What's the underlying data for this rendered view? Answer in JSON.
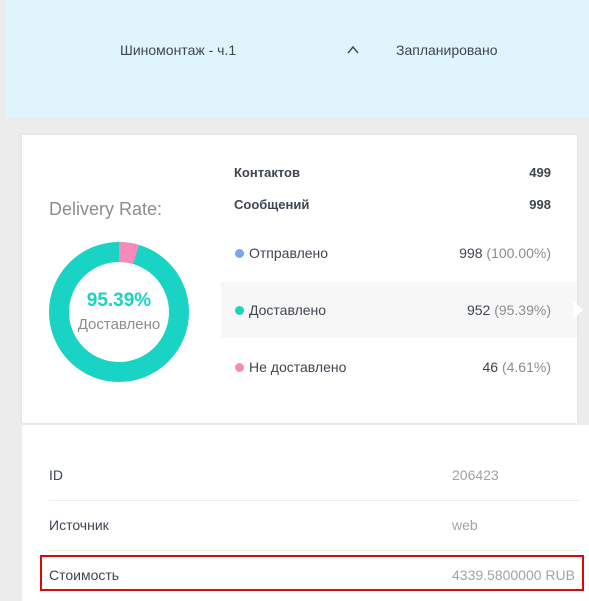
{
  "campaign": {
    "name": "Шиномонтаж - ч.1",
    "status": "Запланировано",
    "chevron_icon": "chevron-up-icon"
  },
  "stats": {
    "title": "Delivery Rate:",
    "rate_percent": "95.39%",
    "rate_label": "Доставлено",
    "rate_value": 95.39,
    "contacts_label": "Контактов",
    "contacts_value": "499",
    "messages_label": "Сообщений",
    "messages_value": "998",
    "rows": [
      {
        "label": "Отправлено",
        "count": "998",
        "percent": "(100.00%)",
        "color": "#7ba4f2"
      },
      {
        "label": "Доставлено",
        "count": "952",
        "percent": "(95.39%)",
        "color": "#19d3c5"
      },
      {
        "label": "Не доставлено",
        "count": "46",
        "percent": "(4.61%)",
        "color": "#f78ab9"
      }
    ],
    "colors": {
      "delivered": "#19d3c5",
      "not_delivered": "#f78ab9"
    }
  },
  "details": {
    "rows": [
      {
        "label": "ID",
        "value": "206423"
      },
      {
        "label": "Источник",
        "value": "web"
      },
      {
        "label": "Стоимость",
        "value": "4339.5800000 RUB"
      }
    ]
  }
}
